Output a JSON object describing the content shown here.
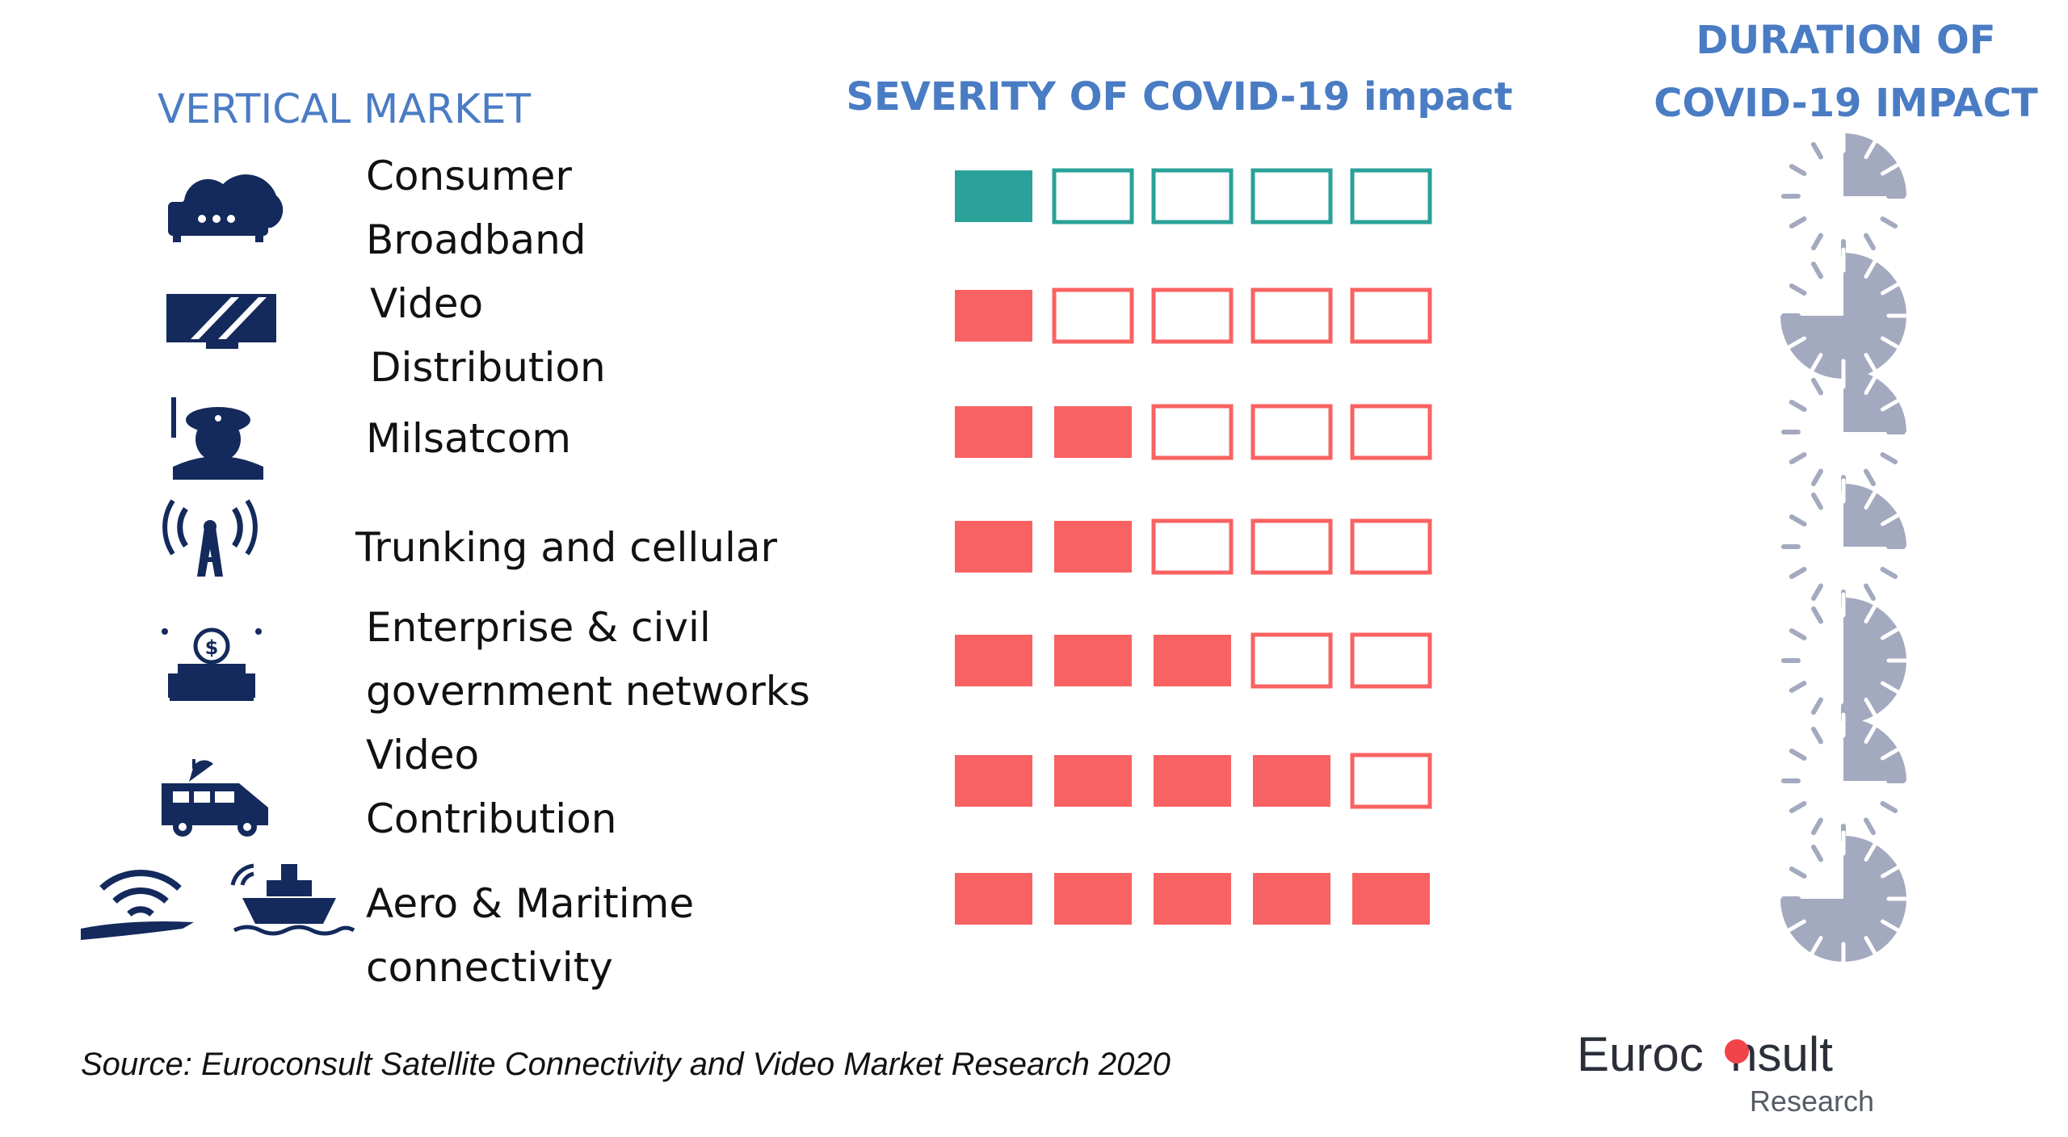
{
  "headers": {
    "vertical_market": "VERTICAL MARKET",
    "severity": "SEVERITY OF COVID-19 impact",
    "duration_line1": "DURATION OF",
    "duration_line2": "COVID-19 IMPACT"
  },
  "colors": {
    "header_blue": "#4a7cc4",
    "teal": "#2aa199",
    "red": "#f96262",
    "icon_navy": "#142a5c",
    "clock_gray": "#a3aabf"
  },
  "scale_max": 5,
  "rows": [
    {
      "lines": [
        "Consumer",
        "Broadband"
      ],
      "icon": "router-icon",
      "severity": 1,
      "color": "#2aa199",
      "duration_quarters": 1
    },
    {
      "lines": [
        "Video",
        "Distribution"
      ],
      "icon": "tv-screen-icon",
      "severity": 1,
      "color": "#f96262",
      "duration_quarters": 3
    },
    {
      "lines": [
        "Milsatcom"
      ],
      "icon": "soldier-icon",
      "severity": 2,
      "color": "#f96262",
      "duration_quarters": 1
    },
    {
      "lines": [
        "Trunking and cellular"
      ],
      "icon": "cell-tower-icon",
      "severity": 2,
      "color": "#f96262",
      "duration_quarters": 1
    },
    {
      "lines": [
        "Enterprise  & civil",
        "government networks"
      ],
      "icon": "enterprise-building-icon",
      "severity": 3,
      "color": "#f96262",
      "duration_quarters": 2
    },
    {
      "lines": [
        "Video",
        "Contribution"
      ],
      "icon": "broadcast-van-icon",
      "severity": 4,
      "color": "#f96262",
      "duration_quarters": 1
    },
    {
      "lines": [
        "Aero & Maritime",
        "connectivity"
      ],
      "icon": "plane-and-ship-icon",
      "severity": 5,
      "color": "#f96262",
      "duration_quarters": 3
    }
  ],
  "source": "Source: Euroconsult Satellite Connectivity and Video Market Research 2020",
  "logo": {
    "pre": "Euroc",
    "post": "nsult",
    "sub": "Research"
  }
}
